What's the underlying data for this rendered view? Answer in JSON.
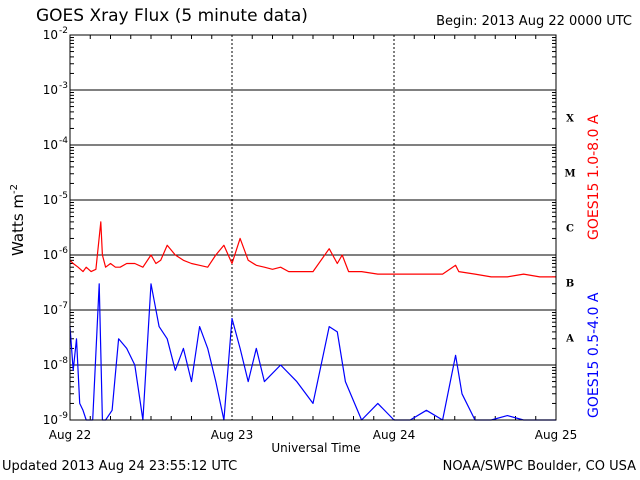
{
  "header": {
    "title": "GOES Xray Flux (5 minute data)",
    "begin": "Begin:  2013 Aug 22 0000 UTC"
  },
  "footer": {
    "updated": "Updated 2013 Aug 24 23:55:12 UTC",
    "credit": "NOAA/SWPC Boulder, CO USA"
  },
  "colors": {
    "long_channel": "#ff0000",
    "short_channel": "#0000ff",
    "grid": "#000000"
  },
  "chart_data": {
    "type": "line",
    "title": "GOES Xray Flux (5 minute data)",
    "xlabel": "Universal Time",
    "ylabel": "Watts m",
    "ylabel_superscript": "-2",
    "ylog": true,
    "ylim": [
      1e-09,
      0.01
    ],
    "xlim": [
      "Aug 22",
      "Aug 25"
    ],
    "x_ticks": [
      "Aug 22",
      "Aug 23",
      "Aug 24",
      "Aug 25"
    ],
    "y_ticks": [
      {
        "base": "10",
        "exp": "-2"
      },
      {
        "base": "10",
        "exp": "-3"
      },
      {
        "base": "10",
        "exp": "-4"
      },
      {
        "base": "10",
        "exp": "-5"
      },
      {
        "base": "10",
        "exp": "-6"
      },
      {
        "base": "10",
        "exp": "-7"
      },
      {
        "base": "10",
        "exp": "-8"
      },
      {
        "base": "10",
        "exp": "-9"
      }
    ],
    "flare_classes": [
      "X",
      "M",
      "C",
      "B",
      "A"
    ],
    "grid": "horizontal at each decade, vertical at each day",
    "series": [
      {
        "name": "GOES15 1.0-8.0 A",
        "color": "#ff0000",
        "x": [
          0,
          0.02,
          0.05,
          0.08,
          0.1,
          0.13,
          0.16,
          0.19,
          0.2,
          0.22,
          0.25,
          0.28,
          0.31,
          0.35,
          0.4,
          0.45,
          0.5,
          0.53,
          0.56,
          0.6,
          0.65,
          0.7,
          0.75,
          0.8,
          0.85,
          0.9,
          0.95,
          1.0,
          1.05,
          1.1,
          1.15,
          1.2,
          1.25,
          1.3,
          1.35,
          1.4,
          1.5,
          1.6,
          1.65,
          1.68,
          1.72,
          1.8,
          1.9,
          2.0,
          2.1,
          2.2,
          2.3,
          2.38,
          2.4,
          2.5,
          2.6,
          2.7,
          2.8,
          2.9,
          2.97,
          3.0
        ],
        "y": [
          8e-07,
          7e-07,
          6e-07,
          5e-07,
          6e-07,
          5e-07,
          5.5e-07,
          4e-06,
          1e-06,
          6e-07,
          7e-07,
          6e-07,
          6e-07,
          7e-07,
          7e-07,
          6e-07,
          1e-06,
          7e-07,
          8e-07,
          1.5e-06,
          1e-06,
          8e-07,
          7e-07,
          6.5e-07,
          6e-07,
          1e-06,
          1.5e-06,
          7e-07,
          2e-06,
          8e-07,
          6.5e-07,
          6e-07,
          5.5e-07,
          6e-07,
          5e-07,
          5e-07,
          5e-07,
          1.3e-06,
          7e-07,
          1e-06,
          5e-07,
          5e-07,
          4.5e-07,
          4.5e-07,
          4.5e-07,
          4.5e-07,
          4.5e-07,
          6.5e-07,
          5e-07,
          4.5e-07,
          4e-07,
          4e-07,
          4.5e-07,
          4e-07,
          4e-07,
          4e-07
        ]
      },
      {
        "name": "GOES15 0.5-4.0 A",
        "color": "#0000ff",
        "x": [
          0,
          0.02,
          0.04,
          0.06,
          0.08,
          0.1,
          0.14,
          0.18,
          0.2,
          0.22,
          0.26,
          0.3,
          0.35,
          0.4,
          0.45,
          0.5,
          0.55,
          0.6,
          0.65,
          0.7,
          0.75,
          0.8,
          0.85,
          0.9,
          0.95,
          1.0,
          1.05,
          1.1,
          1.15,
          1.2,
          1.3,
          1.4,
          1.5,
          1.6,
          1.65,
          1.7,
          1.8,
          1.9,
          2.0,
          2.1,
          2.2,
          2.3,
          2.38,
          2.42,
          2.5,
          2.6,
          2.7,
          2.8,
          2.9,
          3.0
        ],
        "y": [
          5e-08,
          8e-09,
          3e-08,
          2e-09,
          1.5e-09,
          1e-09,
          1e-09,
          3e-07,
          1e-09,
          1e-09,
          1.5e-09,
          3e-08,
          2e-08,
          1e-08,
          1e-09,
          3e-07,
          5e-08,
          3e-08,
          8e-09,
          2e-08,
          5e-09,
          5e-08,
          2e-08,
          5e-09,
          1e-09,
          7e-08,
          2e-08,
          5e-09,
          2e-08,
          5e-09,
          1e-08,
          5e-09,
          2e-09,
          5e-08,
          4e-08,
          5e-09,
          1e-09,
          2e-09,
          1e-09,
          1e-09,
          1.5e-09,
          1e-09,
          1.5e-08,
          3e-09,
          1e-09,
          1e-09,
          1.2e-09,
          1e-09,
          1e-09,
          1e-09
        ]
      }
    ]
  }
}
